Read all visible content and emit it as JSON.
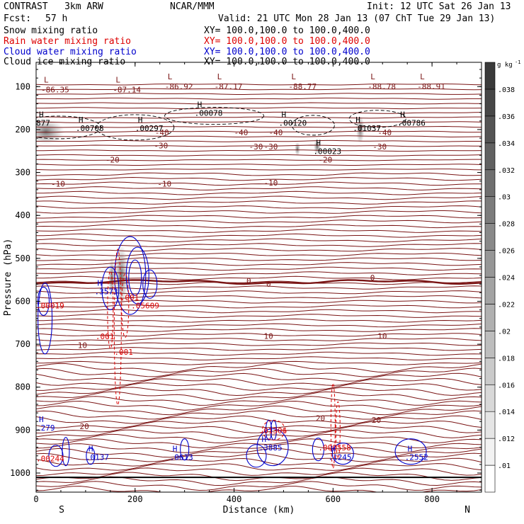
{
  "header": {
    "model": "CONTRAST   3km ARW",
    "center": "NCAR/MMM",
    "init": "Init: 12 UTC Sat 26 Jan 13",
    "fcst_label": "Fcst:",
    "fcst_value": "57 h",
    "valid": "Valid: 21 UTC Mon 28 Jan 13 (07 ChT Tue 29 Jan 13)"
  },
  "fields": [
    {
      "name": "Snow mixing ratio",
      "xy": "XY= 100.0,100.0 to 100.0,400.0",
      "color": "#000000"
    },
    {
      "name": "Rain water mixing ratio",
      "xy": "XY= 100.0,100.0 to 100.0,400.0",
      "color": "#dd0000"
    },
    {
      "name": "Cloud water mixing ratio",
      "xy": "XY= 100.0,100.0 to 100.0,400.0",
      "color": "#0000cc"
    },
    {
      "name": "Cloud ice mixing ratio",
      "xy": "XY= 100.0,100.0 to 100.0,400.0",
      "color": "#000000"
    }
  ],
  "colors": {
    "temperature": "#7a1515",
    "rain": "#dd0000",
    "cloud": "#0000cc",
    "ice": "#000000"
  },
  "chart_data": {
    "type": "heatmap",
    "xlabel": "Distance (km)",
    "ylabel": "Pressure (hPa)",
    "xlim": [
      0,
      900
    ],
    "ylim": [
      1050,
      50
    ],
    "x_ticks": [
      0,
      200,
      400,
      600,
      800
    ],
    "x_tick_labels": [
      "0",
      "200",
      "400",
      "600",
      "800"
    ],
    "y_ticks": [
      100,
      200,
      300,
      400,
      500,
      600,
      700,
      800,
      900,
      1000
    ],
    "y_tick_labels": [
      "100",
      "200",
      "300",
      "400",
      "500",
      "600",
      "700",
      "800",
      "900",
      "1000"
    ],
    "end_labels": {
      "left": "S",
      "right": "N"
    },
    "colorbar": {
      "unit": "g kg",
      "unit_sup": "-1",
      "levels": [
        0.01,
        0.012,
        0.014,
        0.016,
        0.018,
        0.02,
        0.022,
        0.024,
        0.026,
        0.028,
        0.03,
        0.032,
        0.034,
        0.036,
        0.038
      ],
      "labels": [
        ".01",
        ".012",
        ".014",
        ".016",
        ".018",
        ".02",
        ".022",
        ".024",
        ".026",
        ".028",
        ".03",
        ".032",
        ".034",
        ".036",
        ".038"
      ],
      "shade_start": "#ffffff",
      "shade_end": "#3a3a3a"
    },
    "temperature_isotherms": [
      {
        "value": -40,
        "p": 207
      },
      {
        "value": -30,
        "p": 237
      },
      {
        "value": -20,
        "p": 270
      },
      {
        "value": -10,
        "p": 320
      },
      {
        "value": 0,
        "p": 555
      },
      {
        "value": 10,
        "p": 682
      },
      {
        "value": 20,
        "p": 888
      }
    ],
    "temperature_labels": [
      {
        "text": "-40",
        "x": 240,
        "p": 207
      },
      {
        "text": "-40",
        "x": 400,
        "p": 207
      },
      {
        "text": "-40",
        "x": 470,
        "p": 207
      },
      {
        "text": "-40",
        "x": 690,
        "p": 207
      },
      {
        "text": "-30",
        "x": 238,
        "p": 237
      },
      {
        "text": "-30",
        "x": 430,
        "p": 240
      },
      {
        "text": "-30",
        "x": 460,
        "p": 240
      },
      {
        "text": "-30",
        "x": 680,
        "p": 240
      },
      {
        "text": "-20",
        "x": 140,
        "p": 270
      },
      {
        "text": "-20",
        "x": 570,
        "p": 270
      },
      {
        "text": "-10",
        "x": 30,
        "p": 326
      },
      {
        "text": "-10",
        "x": 245,
        "p": 326
      },
      {
        "text": "-10",
        "x": 460,
        "p": 324
      },
      {
        "text": "0",
        "x": 425,
        "p": 552
      },
      {
        "text": "0",
        "x": 465,
        "p": 560
      },
      {
        "text": "0",
        "x": 675,
        "p": 545
      },
      {
        "text": "10",
        "x": 84,
        "p": 702
      },
      {
        "text": "10",
        "x": 460,
        "p": 681
      },
      {
        "text": "10",
        "x": 690,
        "p": 681
      },
      {
        "text": "20",
        "x": 88,
        "p": 891
      },
      {
        "text": "20",
        "x": 565,
        "p": 872
      },
      {
        "text": "20",
        "x": 678,
        "p": 876
      }
    ],
    "low_centers": [
      {
        "text": "-86.35",
        "x": 10,
        "p": 100
      },
      {
        "text": "-87.14",
        "x": 155,
        "p": 100
      },
      {
        "text": "-86.92",
        "x": 260,
        "p": 93
      },
      {
        "text": "-87.17",
        "x": 360,
        "p": 93
      },
      {
        "text": "-88.77",
        "x": 510,
        "p": 93
      },
      {
        "text": "-88.78",
        "x": 670,
        "p": 93
      },
      {
        "text": "-88.91",
        "x": 770,
        "p": 93
      }
    ],
    "ice_maxima": [
      {
        "text": ".00078",
        "x": 320,
        "p": 155
      },
      {
        "text": ".00708",
        "x": 80,
        "p": 190
      },
      {
        "text": ".00297",
        "x": 200,
        "p": 190
      },
      {
        "text": ".00120",
        "x": 490,
        "p": 178
      },
      {
        "text": ".01037",
        "x": 640,
        "p": 190
      },
      {
        "text": ".00786",
        "x": 730,
        "p": 178
      },
      {
        "text": ".00023",
        "x": 560,
        "p": 244
      },
      {
        "text": "877",
        "x": 0,
        "p": 178
      }
    ],
    "rain_maxima": [
      {
        "text": ".00019",
        "x": 0,
        "p": 610
      },
      {
        "text": ".001",
        "x": 170,
        "p": 591
      },
      {
        "text": ".05609",
        "x": 192,
        "p": 610
      },
      {
        "text": ".001",
        "x": 120,
        "p": 682
      },
      {
        "text": ".001",
        "x": 158,
        "p": 718
      },
      {
        "text": ".00244",
        "x": 0,
        "p": 966
      },
      {
        "text": ".01306",
        "x": 450,
        "p": 901
      },
      {
        "text": ".000558",
        "x": 570,
        "p": 941
      }
    ],
    "cloud_maxima": [
      {
        "text": ".3573",
        "x": 118,
        "p": 580
      },
      {
        "text": ".279",
        "x": 0,
        "p": 898
      },
      {
        "text": ".0137",
        "x": 100,
        "p": 966
      },
      {
        "text": ".0613",
        "x": 270,
        "p": 966
      },
      {
        "text": ".3885",
        "x": 450,
        "p": 944
      },
      {
        "text": ".1245",
        "x": 590,
        "p": 966
      },
      {
        "text": ".2552",
        "x": 745,
        "p": 966
      }
    ],
    "max_marker": "H",
    "min_marker": "L"
  }
}
